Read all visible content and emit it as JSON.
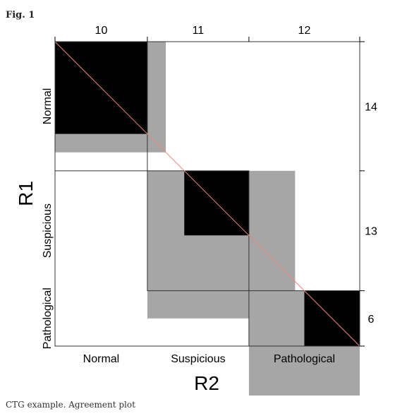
{
  "figure_label": "Fig. 1",
  "caption": "CTG example. Agreement plot",
  "chart_data": {
    "type": "agreement-plot",
    "xlabel": "R2",
    "ylabel": "R1",
    "categories": [
      "Normal",
      "Suspicious",
      "Pathological"
    ],
    "column_totals": [
      10,
      11,
      12
    ],
    "row_totals": [
      14,
      13,
      6
    ],
    "exact_agreement": [
      10,
      7,
      6
    ],
    "partial_agreement": [
      12,
      16,
      12
    ],
    "colors": {
      "exact": "#000000",
      "partial": "#a6a6a6",
      "diagonal": "#f08080",
      "frame": "#333333"
    }
  }
}
